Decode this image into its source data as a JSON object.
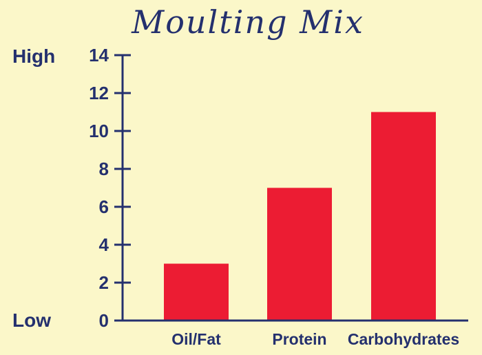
{
  "chart_data": {
    "type": "bar",
    "title": "Moulting Mix",
    "categories": [
      "Oil/Fat",
      "Protein",
      "Carbohydrates"
    ],
    "values": [
      3,
      7,
      11
    ],
    "ylim": [
      0,
      14
    ],
    "yticks": [
      0,
      2,
      4,
      6,
      8,
      10,
      12,
      14
    ],
    "y_top_label": "High",
    "y_bottom_label": "Low",
    "xlabel": "",
    "ylabel": "",
    "grid": false,
    "colors": {
      "bar": "#ec1c33",
      "axis": "#24306e",
      "text": "#24306e",
      "background": "#fbf7c9"
    }
  }
}
